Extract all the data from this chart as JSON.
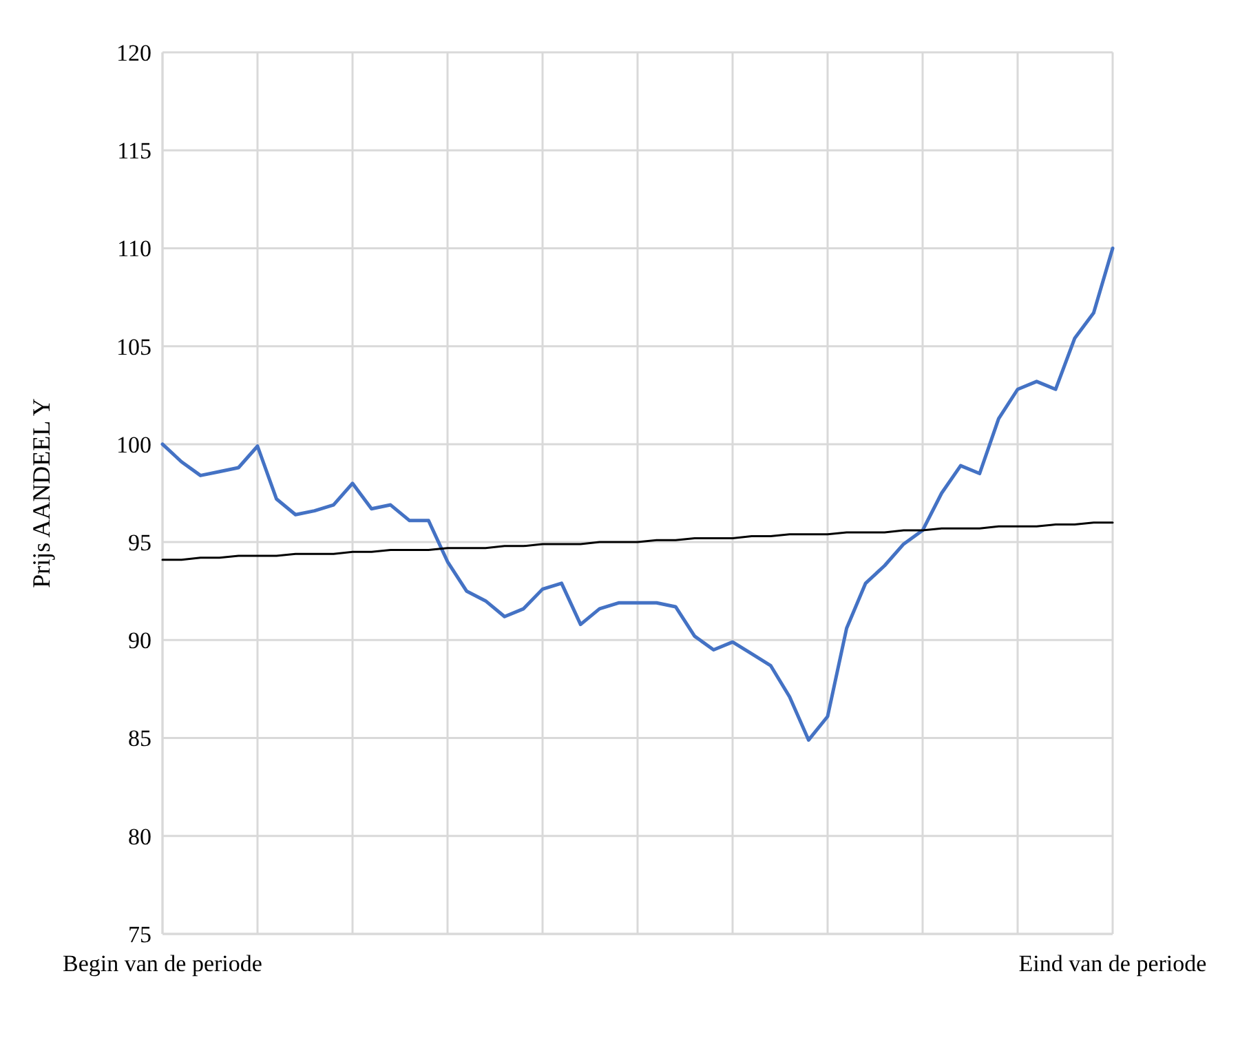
{
  "chart_data": {
    "type": "line",
    "ylabel": "Prijs AANDEEL Y",
    "categories": [
      "Begin van de periode",
      null,
      null,
      null,
      null,
      null,
      null,
      null,
      null,
      null,
      null,
      null,
      null,
      null,
      null,
      null,
      null,
      null,
      null,
      null,
      null,
      null,
      null,
      null,
      null,
      null,
      null,
      null,
      null,
      null,
      null,
      null,
      null,
      null,
      null,
      null,
      null,
      null,
      null,
      null,
      null,
      null,
      null,
      null,
      null,
      null,
      null,
      null,
      null,
      null,
      "Eind van de periode"
    ],
    "ylim": [
      75,
      120
    ],
    "yticks": [
      75,
      80,
      85,
      90,
      95,
      100,
      105,
      110,
      115,
      120
    ],
    "grid": true,
    "series": [
      {
        "color": "#4472c4",
        "values": [
          100.0,
          99.1,
          98.4,
          98.6,
          98.8,
          99.9,
          97.2,
          96.4,
          96.6,
          96.9,
          98.0,
          96.7,
          96.9,
          96.1,
          96.1,
          94.0,
          92.5,
          92.0,
          91.2,
          91.6,
          92.6,
          92.9,
          90.8,
          91.6,
          91.9,
          91.9,
          91.9,
          91.7,
          90.2,
          89.5,
          89.9,
          89.3,
          88.7,
          87.1,
          84.9,
          86.1,
          90.6,
          92.9,
          93.8,
          94.9,
          95.6,
          97.5,
          98.9,
          98.5,
          101.3,
          102.8,
          103.2,
          102.8,
          105.4,
          106.7,
          110.0
        ]
      },
      {
        "color": "#000000",
        "values": [
          94.1,
          94.1,
          94.2,
          94.2,
          94.3,
          94.3,
          94.3,
          94.4,
          94.4,
          94.4,
          94.5,
          94.5,
          94.6,
          94.6,
          94.6,
          94.7,
          94.7,
          94.7,
          94.8,
          94.8,
          94.9,
          94.9,
          94.9,
          95.0,
          95.0,
          95.0,
          95.1,
          95.1,
          95.2,
          95.2,
          95.2,
          95.3,
          95.3,
          95.4,
          95.4,
          95.4,
          95.5,
          95.5,
          95.5,
          95.6,
          95.6,
          95.7,
          95.7,
          95.7,
          95.8,
          95.8,
          95.8,
          95.9,
          95.9,
          96.0,
          96.0
        ]
      }
    ]
  }
}
